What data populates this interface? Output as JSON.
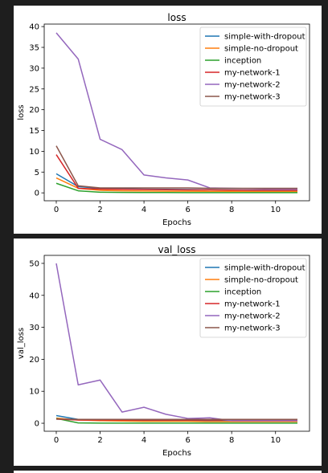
{
  "chart_data": [
    {
      "type": "line",
      "title": "loss",
      "xlabel": "Epochs",
      "ylabel": "loss",
      "xlim": [
        -0.55,
        11.55
      ],
      "ylim": [
        -1.9,
        40.6
      ],
      "xticks": [
        0,
        2,
        4,
        6,
        8,
        10
      ],
      "yticks": [
        0,
        5,
        10,
        15,
        20,
        25,
        30,
        35,
        40
      ],
      "grid": false,
      "legend_position": "top-right",
      "x": [
        0,
        1,
        2,
        3,
        4,
        5,
        6,
        7,
        8,
        9,
        10,
        11
      ],
      "series": [
        {
          "name": "simple-with-dropout",
          "color": "#1f77b4",
          "values": [
            4.6,
            1.5,
            1.1,
            1.0,
            0.9,
            0.85,
            0.8,
            0.75,
            0.7,
            0.65,
            0.6,
            0.6
          ]
        },
        {
          "name": "simple-no-dropout",
          "color": "#ff7f0e",
          "values": [
            3.6,
            1.1,
            0.6,
            0.5,
            0.45,
            0.4,
            0.4,
            0.35,
            0.35,
            0.3,
            0.3,
            0.3
          ]
        },
        {
          "name": "inception",
          "color": "#2ca02c",
          "values": [
            2.3,
            0.5,
            0.15,
            0.1,
            0.08,
            0.07,
            0.06,
            0.06,
            0.05,
            0.05,
            0.05,
            0.05
          ]
        },
        {
          "name": "my-network-1",
          "color": "#d62728",
          "values": [
            9.2,
            1.1,
            0.9,
            0.85,
            0.8,
            0.75,
            0.7,
            0.7,
            0.65,
            0.6,
            0.6,
            0.6
          ]
        },
        {
          "name": "my-network-2",
          "color": "#9467bd",
          "values": [
            38.5,
            32.2,
            12.9,
            10.4,
            4.3,
            3.6,
            3.1,
            1.2,
            1.1,
            1.0,
            0.9,
            0.9
          ]
        },
        {
          "name": "my-network-3",
          "color": "#8c564b",
          "values": [
            11.3,
            1.7,
            1.2,
            1.2,
            1.2,
            1.2,
            1.2,
            1.1,
            1.1,
            1.1,
            1.1,
            1.1
          ]
        }
      ]
    },
    {
      "type": "line",
      "title": "val_loss",
      "xlabel": "Epochs",
      "ylabel": "val_loss",
      "xlim": [
        -0.55,
        11.55
      ],
      "ylim": [
        -2.5,
        52.5
      ],
      "xticks": [
        0,
        2,
        4,
        6,
        8,
        10
      ],
      "yticks": [
        0,
        10,
        20,
        30,
        40,
        50
      ],
      "grid": false,
      "legend_position": "top-right",
      "x": [
        0,
        1,
        2,
        3,
        4,
        5,
        6,
        7,
        8,
        9,
        10,
        11
      ],
      "series": [
        {
          "name": "simple-with-dropout",
          "color": "#1f77b4",
          "values": [
            2.4,
            1.2,
            1.0,
            0.9,
            0.9,
            0.8,
            0.8,
            0.8,
            0.7,
            0.7,
            0.7,
            0.7
          ]
        },
        {
          "name": "simple-no-dropout",
          "color": "#ff7f0e",
          "values": [
            1.6,
            1.0,
            0.8,
            0.7,
            0.6,
            0.6,
            0.6,
            0.5,
            0.5,
            0.5,
            0.5,
            0.5
          ]
        },
        {
          "name": "inception",
          "color": "#2ca02c",
          "values": [
            1.5,
            0.1,
            0.05,
            0.05,
            0.05,
            0.05,
            0.05,
            0.05,
            0.05,
            0.05,
            0.05,
            0.05
          ]
        },
        {
          "name": "my-network-1",
          "color": "#d62728",
          "values": [
            1.3,
            1.0,
            1.0,
            1.0,
            1.0,
            1.0,
            1.0,
            1.0,
            1.0,
            0.9,
            0.9,
            0.9
          ]
        },
        {
          "name": "my-network-2",
          "color": "#9467bd",
          "values": [
            50.0,
            12.0,
            13.5,
            3.5,
            5.0,
            2.8,
            1.5,
            1.7,
            0.8,
            0.8,
            0.8,
            0.8
          ]
        },
        {
          "name": "my-network-3",
          "color": "#8c564b",
          "values": [
            1.3,
            1.2,
            1.2,
            1.2,
            1.2,
            1.2,
            1.2,
            1.2,
            1.2,
            1.2,
            1.2,
            1.2
          ]
        }
      ]
    }
  ]
}
